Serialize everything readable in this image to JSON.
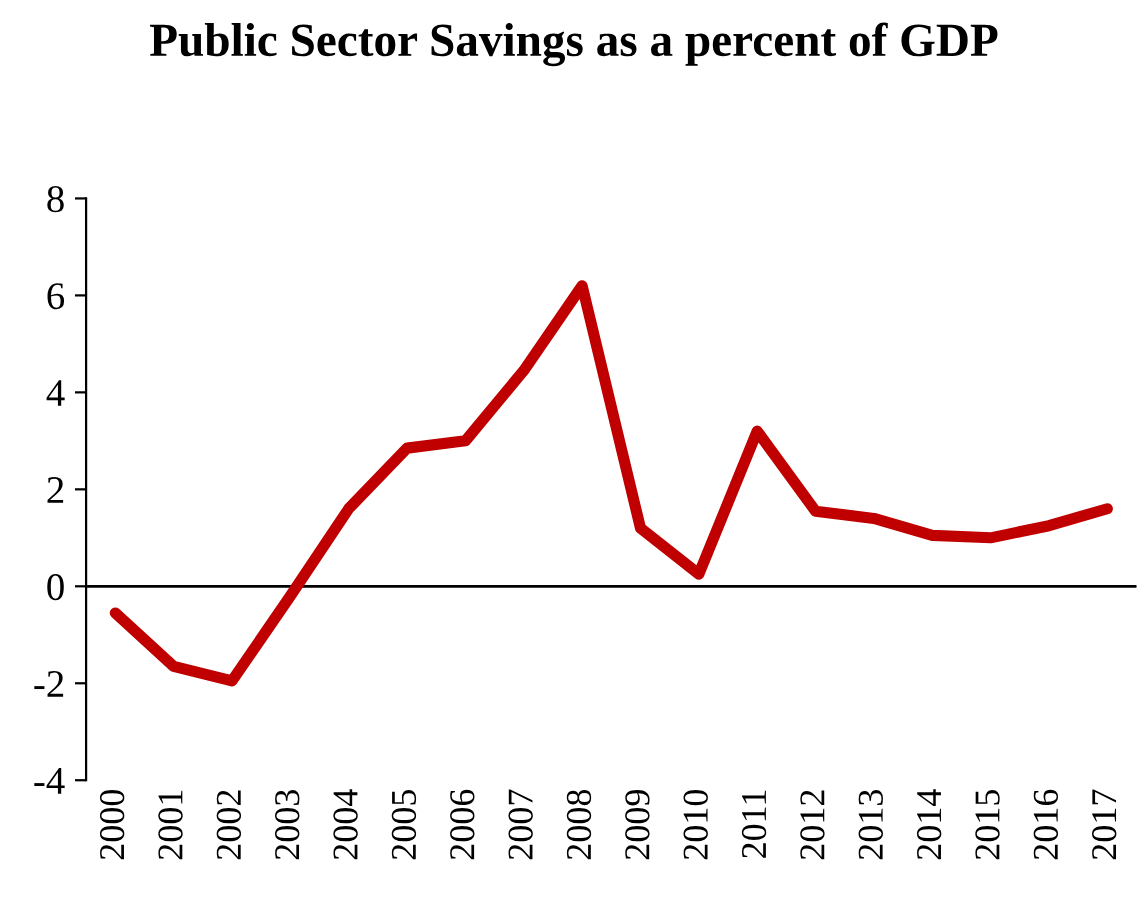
{
  "chart_data": {
    "type": "line",
    "title": "Public Sector Savings as a percent of GDP",
    "categories": [
      "2000",
      "2001",
      "2002",
      "2003",
      "2004",
      "2005",
      "2006",
      "2007",
      "2008",
      "2009",
      "2010",
      "2011",
      "2012",
      "2013",
      "2014",
      "2015",
      "2016",
      "2017"
    ],
    "series": [
      {
        "color": "#c00000",
        "values": [
          -0.55,
          -1.65,
          -1.95,
          -0.2,
          1.6,
          2.85,
          3.0,
          4.45,
          6.2,
          1.2,
          0.25,
          3.2,
          1.55,
          1.4,
          1.05,
          1.0,
          1.25,
          1.6
        ]
      }
    ],
    "ylim": [
      -4,
      8
    ],
    "yticks": [
      -4,
      -2,
      0,
      2,
      4,
      6,
      8
    ],
    "ref_lines": [
      {
        "axis": "y",
        "value": 0,
        "color": "#000000"
      }
    ],
    "legend": false,
    "marker": "none",
    "line_style": "solid"
  }
}
